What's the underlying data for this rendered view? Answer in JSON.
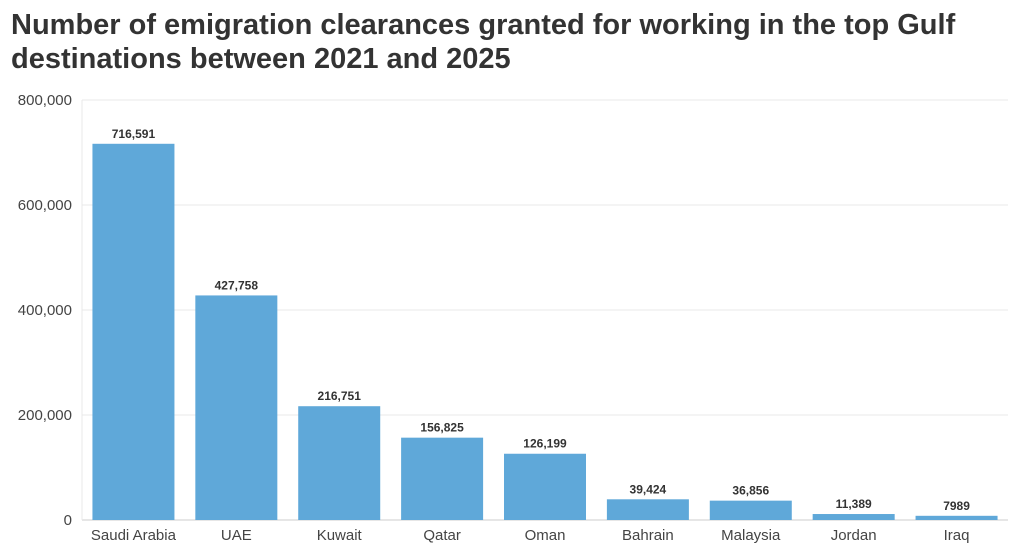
{
  "chart_data": {
    "type": "bar",
    "title": "Number of emigration clearances granted for working in the top Gulf destinations between 2021 and 2025",
    "xlabel": "",
    "ylabel": "",
    "ylim": [
      0,
      800000
    ],
    "yticks": [
      0,
      200000,
      400000,
      600000,
      800000
    ],
    "ytick_labels": [
      "0",
      "200,000",
      "400,000",
      "600,000",
      "800,000"
    ],
    "grid": true,
    "bar_color": "#5fa8d9",
    "categories": [
      "Saudi Arabia",
      "UAE",
      "Kuwait",
      "Qatar",
      "Oman",
      "Bahrain",
      "Malaysia",
      "Jordan",
      "Iraq"
    ],
    "values": [
      716591,
      427758,
      216751,
      156825,
      126199,
      39424,
      36856,
      11389,
      7989
    ],
    "value_labels": [
      "716,591",
      "427,758",
      "216,751",
      "156,825",
      "126,199",
      "39,424",
      "36,856",
      "11,389",
      "7989"
    ]
  }
}
